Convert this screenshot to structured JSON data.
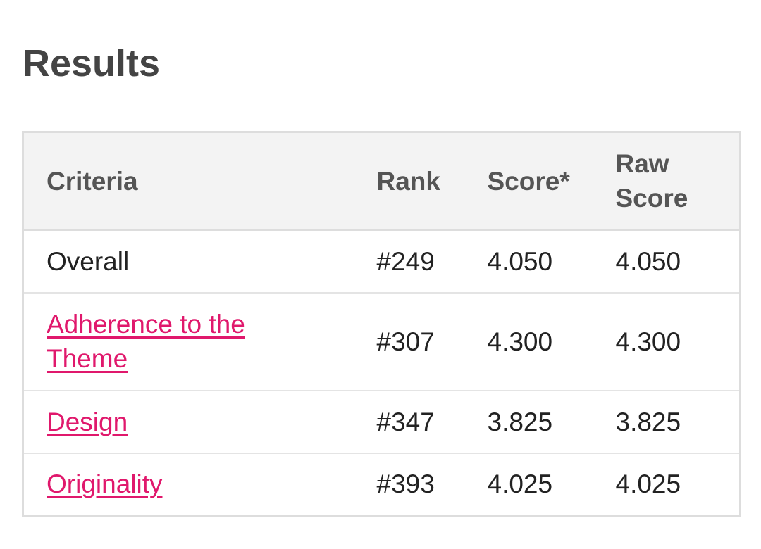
{
  "header": {
    "title": "Results"
  },
  "table": {
    "columns": [
      "Criteria",
      "Rank",
      "Score*",
      "Raw Score"
    ],
    "rows": [
      [
        "Overall",
        "#249",
        "4.050",
        "4.050"
      ],
      [
        "Adherence to the Theme",
        "#307",
        "4.300",
        "4.300"
      ],
      [
        "Design",
        "#347",
        "3.825",
        "3.825"
      ],
      [
        "Originality",
        "#393",
        "4.025",
        "4.025"
      ]
    ]
  }
}
